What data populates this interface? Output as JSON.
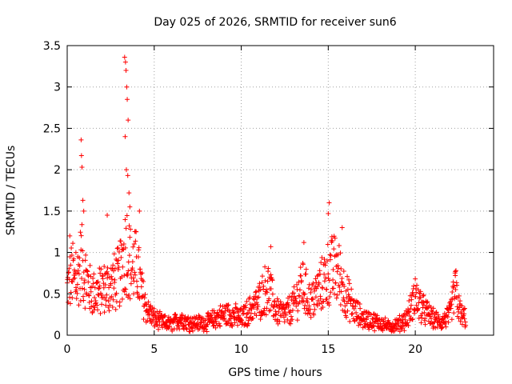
{
  "chart_data": {
    "type": "scatter",
    "title": "Day 025 of 2026, SRMTID for receiver sun6",
    "xlabel": "GPS time / hours",
    "ylabel": "SRMTID / TECUs",
    "xlim": [
      0,
      24.5
    ],
    "ylim": [
      0,
      3.5
    ],
    "xticks": [
      0,
      5,
      10,
      15,
      20
    ],
    "xtick_labels": [
      "0",
      "5",
      "10",
      "15",
      "20"
    ],
    "yticks": [
      0,
      0.5,
      1,
      1.5,
      2,
      2.5,
      3,
      3.5
    ],
    "ytick_labels": [
      "0",
      "0.5",
      "1",
      "1.5",
      "2",
      "2.5",
      "3",
      "3.5"
    ],
    "grid": true,
    "marker": "+",
    "color": "#ff0000",
    "series": [
      {
        "name": "SRMTID",
        "profile": [
          [
            0.0,
            0.55
          ],
          [
            0.3,
            0.75
          ],
          [
            0.5,
            0.6
          ],
          [
            0.8,
            0.9
          ],
          [
            1.0,
            0.75
          ],
          [
            1.3,
            0.55
          ],
          [
            1.6,
            0.5
          ],
          [
            2.0,
            0.55
          ],
          [
            2.5,
            0.6
          ],
          [
            3.0,
            0.7
          ],
          [
            3.4,
            1.1
          ],
          [
            3.7,
            0.8
          ],
          [
            4.0,
            0.85
          ],
          [
            4.3,
            0.5
          ],
          [
            4.6,
            0.3
          ],
          [
            5.0,
            0.2
          ],
          [
            5.5,
            0.15
          ],
          [
            6.0,
            0.13
          ],
          [
            6.5,
            0.2
          ],
          [
            7.0,
            0.15
          ],
          [
            8.0,
            0.15
          ],
          [
            9.0,
            0.25
          ],
          [
            9.5,
            0.25
          ],
          [
            10.0,
            0.2
          ],
          [
            10.5,
            0.3
          ],
          [
            11.0,
            0.4
          ],
          [
            11.5,
            0.6
          ],
          [
            12.0,
            0.3
          ],
          [
            12.5,
            0.25
          ],
          [
            13.0,
            0.35
          ],
          [
            13.5,
            0.6
          ],
          [
            14.0,
            0.4
          ],
          [
            14.5,
            0.55
          ],
          [
            15.0,
            0.75
          ],
          [
            15.5,
            0.8
          ],
          [
            16.0,
            0.5
          ],
          [
            16.5,
            0.3
          ],
          [
            17.0,
            0.2
          ],
          [
            18.0,
            0.15
          ],
          [
            18.5,
            0.1
          ],
          [
            19.0,
            0.13
          ],
          [
            19.5,
            0.2
          ],
          [
            20.0,
            0.45
          ],
          [
            20.5,
            0.3
          ],
          [
            21.0,
            0.2
          ],
          [
            21.5,
            0.15
          ],
          [
            22.0,
            0.25
          ],
          [
            22.3,
            0.55
          ],
          [
            22.6,
            0.25
          ],
          [
            22.9,
            0.2
          ]
        ],
        "spikes": [
          [
            0.8,
            2.36
          ],
          [
            0.82,
            2.17
          ],
          [
            0.85,
            2.03
          ],
          [
            0.9,
            1.63
          ],
          [
            0.95,
            1.5
          ],
          [
            3.3,
            3.36
          ],
          [
            3.35,
            3.3
          ],
          [
            3.38,
            3.2
          ],
          [
            3.42,
            3.0
          ],
          [
            3.45,
            2.85
          ],
          [
            3.5,
            2.6
          ],
          [
            3.33,
            2.4
          ],
          [
            3.4,
            2.0
          ],
          [
            3.48,
            1.93
          ],
          [
            3.55,
            1.72
          ],
          [
            3.6,
            1.55
          ],
          [
            4.15,
            1.5
          ],
          [
            2.3,
            1.45
          ],
          [
            15.05,
            1.6
          ],
          [
            15.0,
            1.47
          ],
          [
            11.7,
            1.07
          ],
          [
            13.6,
            1.12
          ],
          [
            15.8,
            1.3
          ],
          [
            20.0,
            0.68
          ],
          [
            22.3,
            0.72
          ],
          [
            0.15,
            1.2
          ],
          [
            0.5,
            1.0
          ]
        ]
      }
    ]
  }
}
